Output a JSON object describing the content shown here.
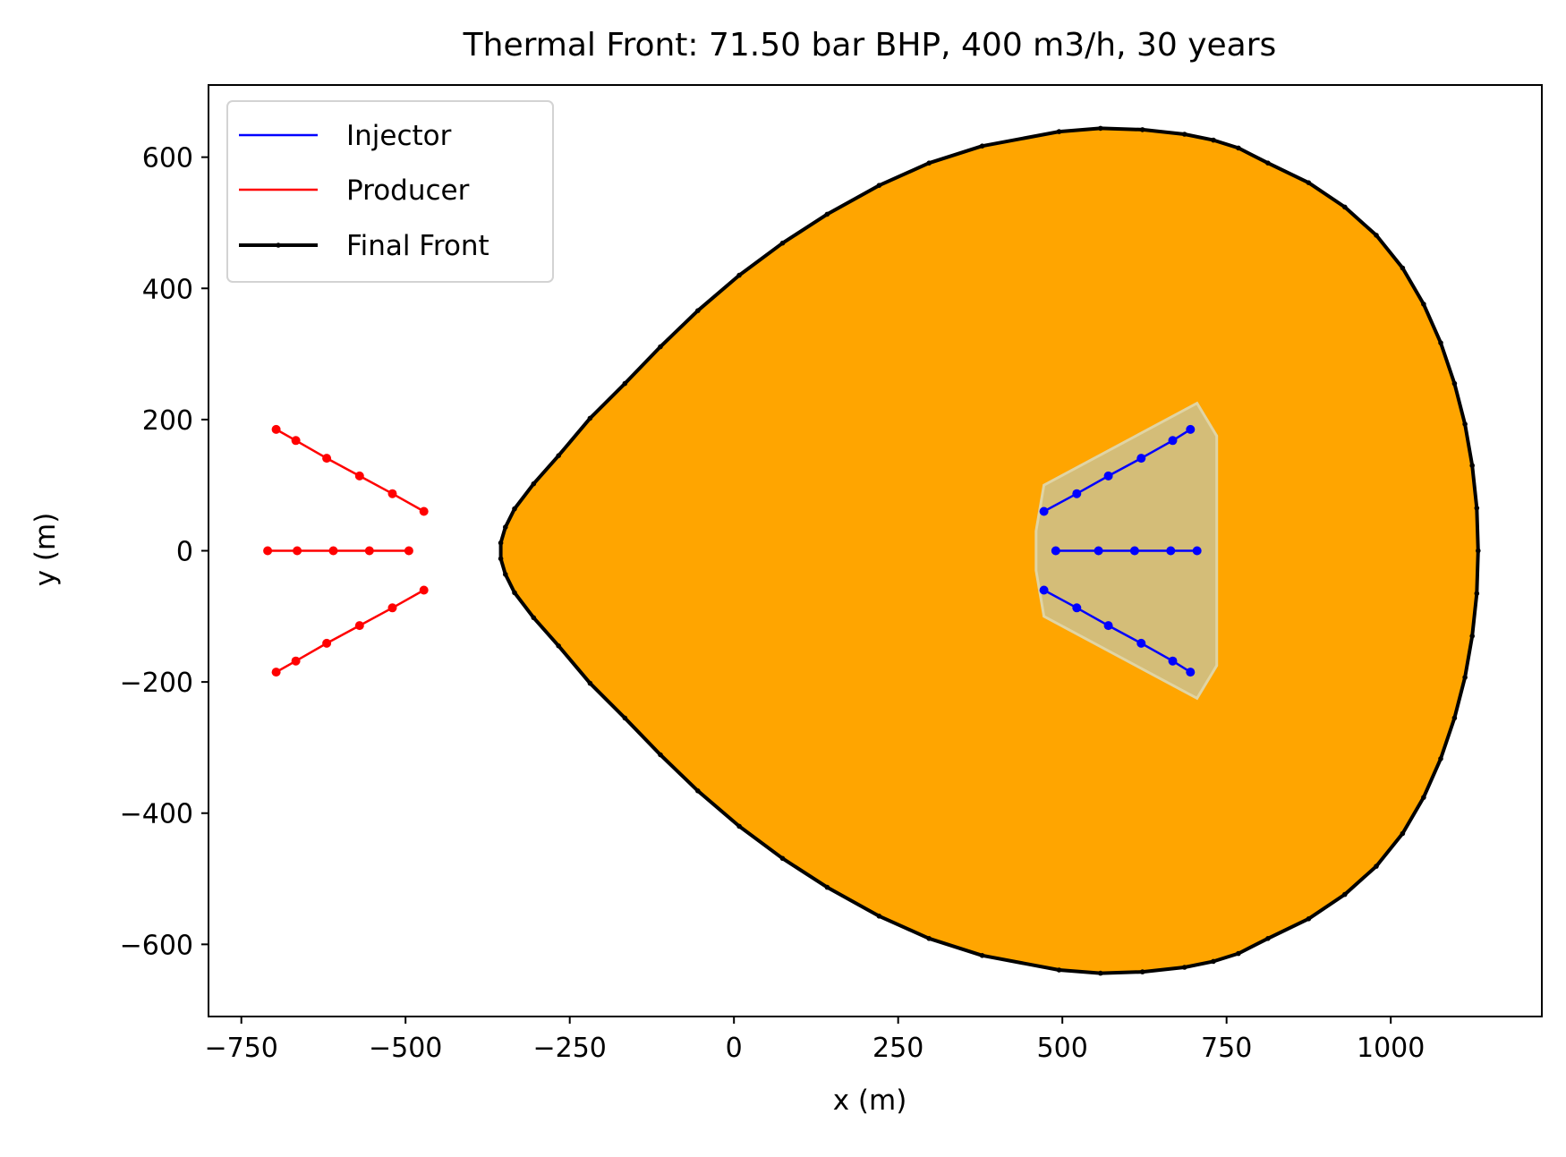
{
  "chart_data": {
    "type": "line",
    "title": "Thermal Front: 71.50 bar BHP, 400 m3/h, 30 years",
    "xlabel": "x (m)",
    "ylabel": "y (m)",
    "xlim": [
      -800,
      1230
    ],
    "ylim": [
      -710,
      710
    ],
    "xticks": [
      -750,
      -500,
      -250,
      0,
      250,
      500,
      750,
      1000
    ],
    "xtick_labels": [
      "−750",
      "−500",
      "−250",
      "0",
      "250",
      "500",
      "750",
      "1000"
    ],
    "yticks": [
      -600,
      -400,
      -200,
      0,
      200,
      400,
      600
    ],
    "ytick_labels": [
      "−600",
      "−400",
      "−200",
      "0",
      "200",
      "400",
      "600"
    ],
    "grid": false,
    "legend_position": "top-left",
    "legend": [
      "Injector",
      "Producer",
      "Final Front"
    ],
    "colors": {
      "injector": "#0000ff",
      "producer": "#ff0000",
      "front_line": "#000000",
      "front_fill": "#ffa500",
      "injector_zone_fill": "#d4bd78",
      "injector_zone_edge": "#e0d4a4"
    },
    "series": [
      {
        "name": "Injector",
        "wells": [
          [
            [
              472,
              60
            ],
            [
              522,
              87
            ],
            [
              570,
              114
            ],
            [
              620,
              141
            ],
            [
              668,
              168
            ],
            [
              695,
              185
            ]
          ],
          [
            [
              490,
              0
            ],
            [
              555,
              0
            ],
            [
              610,
              0
            ],
            [
              665,
              0
            ],
            [
              705,
              0
            ]
          ],
          [
            [
              472,
              -60
            ],
            [
              522,
              -87
            ],
            [
              570,
              -114
            ],
            [
              620,
              -141
            ],
            [
              668,
              -168
            ],
            [
              695,
              -185
            ]
          ]
        ]
      },
      {
        "name": "Producer",
        "wells": [
          [
            [
              -697,
              185
            ],
            [
              -667,
              168
            ],
            [
              -620,
              141
            ],
            [
              -570,
              114
            ],
            [
              -520,
              87
            ],
            [
              -472,
              60
            ]
          ],
          [
            [
              -710,
              0
            ],
            [
              -665,
              0
            ],
            [
              -610,
              0
            ],
            [
              -555,
              0
            ],
            [
              -495,
              0
            ]
          ],
          [
            [
              -697,
              -185
            ],
            [
              -667,
              -168
            ],
            [
              -620,
              -141
            ],
            [
              -570,
              -114
            ],
            [
              -520,
              -87
            ],
            [
              -472,
              -60
            ]
          ]
        ]
      },
      {
        "name": "Final Front",
        "points": [
          [
            1133,
            0
          ],
          [
            1131,
            65
          ],
          [
            1124,
            130
          ],
          [
            1113,
            193
          ],
          [
            1097,
            255
          ],
          [
            1076,
            317
          ],
          [
            1050,
            376
          ],
          [
            1018,
            431
          ],
          [
            978,
            481
          ],
          [
            930,
            524
          ],
          [
            875,
            561
          ],
          [
            813,
            591
          ],
          [
            768,
            614
          ],
          [
            730,
            626
          ],
          [
            686,
            635
          ],
          [
            622,
            642
          ],
          [
            558,
            644
          ],
          [
            495,
            639
          ],
          [
            378,
            617
          ],
          [
            297,
            591
          ],
          [
            221,
            557
          ],
          [
            142,
            513
          ],
          [
            74,
            469
          ],
          [
            8,
            420
          ],
          [
            -55,
            366
          ],
          [
            -112,
            311
          ],
          [
            -166,
            255
          ],
          [
            -219,
            202
          ],
          [
            -267,
            145
          ],
          [
            -305,
            102
          ],
          [
            -334,
            64
          ],
          [
            -348,
            36
          ],
          [
            -355,
            12
          ],
          [
            -355,
            -12
          ],
          [
            -348,
            -36
          ],
          [
            -334,
            -64
          ],
          [
            -305,
            -102
          ],
          [
            -267,
            -145
          ],
          [
            -219,
            -202
          ],
          [
            -166,
            -255
          ],
          [
            -112,
            -311
          ],
          [
            -55,
            -366
          ],
          [
            8,
            -420
          ],
          [
            74,
            -469
          ],
          [
            142,
            -513
          ],
          [
            221,
            -557
          ],
          [
            297,
            -591
          ],
          [
            378,
            -617
          ],
          [
            495,
            -639
          ],
          [
            558,
            -644
          ],
          [
            622,
            -642
          ],
          [
            686,
            -635
          ],
          [
            730,
            -626
          ],
          [
            768,
            -614
          ],
          [
            813,
            -591
          ],
          [
            875,
            -561
          ],
          [
            930,
            -524
          ],
          [
            978,
            -481
          ],
          [
            1018,
            -431
          ],
          [
            1050,
            -376
          ],
          [
            1076,
            -317
          ],
          [
            1097,
            -255
          ],
          [
            1113,
            -193
          ],
          [
            1124,
            -130
          ],
          [
            1131,
            -65
          ]
        ]
      }
    ],
    "injector_zone": [
      [
        472,
        100
      ],
      [
        705,
        225
      ],
      [
        735,
        175
      ],
      [
        735,
        -175
      ],
      [
        705,
        -225
      ],
      [
        472,
        -100
      ],
      [
        460,
        -30
      ],
      [
        460,
        30
      ]
    ]
  }
}
